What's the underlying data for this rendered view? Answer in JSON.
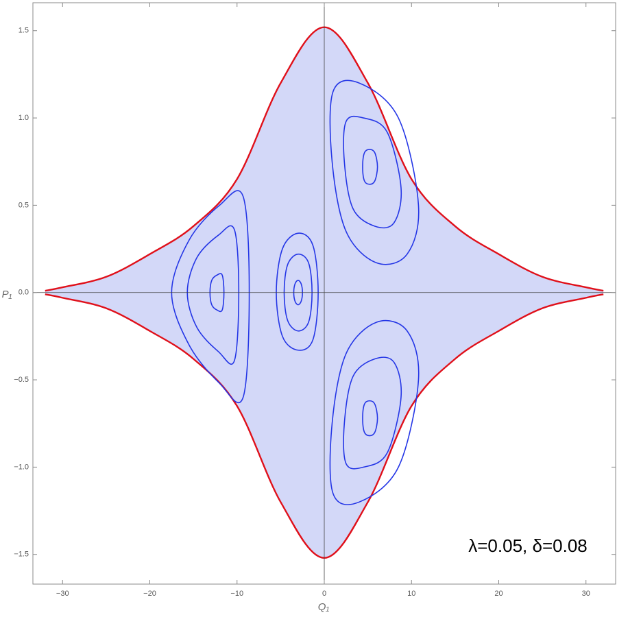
{
  "chart_data": {
    "type": "line",
    "xlabel": "Q₁",
    "ylabel": "P₁",
    "annotation": "λ=0.05, δ=0.08",
    "xlim": [
      -33.4,
      33.4
    ],
    "ylim": [
      -1.67,
      1.66
    ],
    "xticks": [
      {
        "value": -30,
        "label": "−30"
      },
      {
        "value": -20,
        "label": "−20"
      },
      {
        "value": -10,
        "label": "−10"
      },
      0,
      10,
      20,
      30
    ],
    "yticks": [
      {
        "value": -1.5,
        "label": "−1.5"
      },
      {
        "value": -1.0,
        "label": "−1.0"
      },
      {
        "value": -0.5,
        "label": "−0.5"
      },
      {
        "value": 0.0,
        "label": "0.0"
      },
      {
        "value": 0.5,
        "label": "0.5"
      },
      {
        "value": 1.0,
        "label": "1.0"
      },
      {
        "value": 1.5,
        "label": "1.5"
      }
    ],
    "series": [
      {
        "color": "#e0101a",
        "fill": "#d3d8f8",
        "closed": false,
        "x": [
          -32,
          -30,
          -25,
          -20,
          -15,
          -10,
          -5,
          0,
          5,
          10,
          15,
          20,
          25,
          30,
          32
        ],
        "values": [
          0.01,
          0.03,
          0.09,
          0.22,
          0.38,
          0.65,
          1.2,
          1.52,
          1.2,
          0.65,
          0.38,
          0.22,
          0.09,
          0.03,
          0.01
        ]
      },
      {
        "color": "#e0101a",
        "fill": "#d3d8f8",
        "closed": false,
        "x": [
          -32,
          -30,
          -25,
          -20,
          -15,
          -10,
          -5,
          0,
          5,
          10,
          15,
          20,
          25,
          30,
          32
        ],
        "values": [
          -0.01,
          -0.03,
          -0.09,
          -0.22,
          -0.38,
          -0.65,
          -1.2,
          -1.52,
          -1.2,
          -0.65,
          -0.38,
          -0.22,
          -0.09,
          -0.03,
          -0.01
        ]
      },
      {
        "color": "#2436e6",
        "closed": true,
        "x": [
          -8.6,
          -9.3,
          -12.0,
          -15.5,
          -17.5,
          -15.5,
          -12.0,
          -9.3
        ],
        "values": [
          0.0,
          0.55,
          0.5,
          0.3,
          0.0,
          -0.3,
          -0.52,
          -0.6
        ]
      },
      {
        "color": "#2436e6",
        "closed": true,
        "x": [
          -9.8,
          -10.3,
          -12.1,
          -14.6,
          -15.7,
          -14.6,
          -12.1,
          -10.3
        ],
        "values": [
          0.0,
          0.36,
          0.33,
          0.2,
          0.0,
          -0.2,
          -0.34,
          -0.39
        ]
      },
      {
        "color": "#2436e6",
        "closed": true,
        "x": [
          -11.5,
          -11.7,
          -12.3,
          -12.9,
          -13.1,
          -12.9,
          -12.3,
          -11.7
        ],
        "values": [
          0.0,
          0.1,
          0.1,
          0.07,
          0.0,
          -0.07,
          -0.1,
          -0.1
        ]
      },
      {
        "color": "#2436e6",
        "closed": true,
        "x": [
          -0.7,
          -1.3,
          -3.0,
          -4.8,
          -5.5,
          -4.8,
          -3.0,
          -1.3
        ],
        "values": [
          0.0,
          0.27,
          0.34,
          0.25,
          0.0,
          -0.25,
          -0.33,
          -0.27
        ]
      },
      {
        "color": "#2436e6",
        "closed": true,
        "x": [
          -1.4,
          -1.8,
          -3.0,
          -4.2,
          -4.6,
          -4.2,
          -3.0,
          -1.8
        ],
        "values": [
          0.0,
          0.17,
          0.22,
          0.16,
          0.0,
          -0.16,
          -0.22,
          -0.17
        ]
      },
      {
        "color": "#2436e6",
        "closed": true,
        "x": [
          -2.5,
          -2.65,
          -3.0,
          -3.35,
          -3.5,
          -3.35,
          -3.0,
          -2.65
        ],
        "values": [
          0.0,
          0.05,
          0.07,
          0.05,
          0.0,
          -0.05,
          -0.07,
          -0.05
        ]
      },
      {
        "color": "#2436e6",
        "closed": true,
        "x": [
          10.8,
          8.5,
          4.0,
          1.0,
          0.9,
          2.5,
          6.0,
          9.5
        ],
        "values": [
          0.5,
          1.0,
          1.2,
          1.15,
          0.75,
          0.35,
          0.17,
          0.22
        ]
      },
      {
        "color": "#2436e6",
        "closed": true,
        "x": [
          8.8,
          7.2,
          4.5,
          2.5,
          2.3,
          3.3,
          5.8,
          8.0
        ],
        "values": [
          0.6,
          0.92,
          1.0,
          0.98,
          0.75,
          0.48,
          0.38,
          0.4
        ]
      },
      {
        "color": "#2436e6",
        "closed": true,
        "x": [
          6.1,
          5.8,
          5.2,
          4.6,
          4.4,
          4.6,
          5.2,
          5.8
        ],
        "values": [
          0.72,
          0.8,
          0.82,
          0.8,
          0.72,
          0.64,
          0.62,
          0.64
        ]
      },
      {
        "color": "#2436e6",
        "closed": true,
        "x": [
          10.8,
          8.5,
          4.0,
          1.0,
          0.9,
          2.5,
          6.0,
          9.5
        ],
        "values": [
          -0.5,
          -1.0,
          -1.2,
          -1.15,
          -0.75,
          -0.35,
          -0.17,
          -0.22
        ]
      },
      {
        "color": "#2436e6",
        "closed": true,
        "x": [
          8.8,
          7.2,
          4.5,
          2.5,
          2.3,
          3.3,
          5.8,
          8.0
        ],
        "values": [
          -0.6,
          -0.92,
          -1.0,
          -0.98,
          -0.75,
          -0.48,
          -0.38,
          -0.4
        ]
      },
      {
        "color": "#2436e6",
        "closed": true,
        "x": [
          6.1,
          5.8,
          5.2,
          4.6,
          4.4,
          4.6,
          5.2,
          5.8
        ],
        "values": [
          -0.72,
          -0.8,
          -0.82,
          -0.8,
          -0.72,
          -0.64,
          -0.62,
          -0.64
        ]
      }
    ]
  }
}
